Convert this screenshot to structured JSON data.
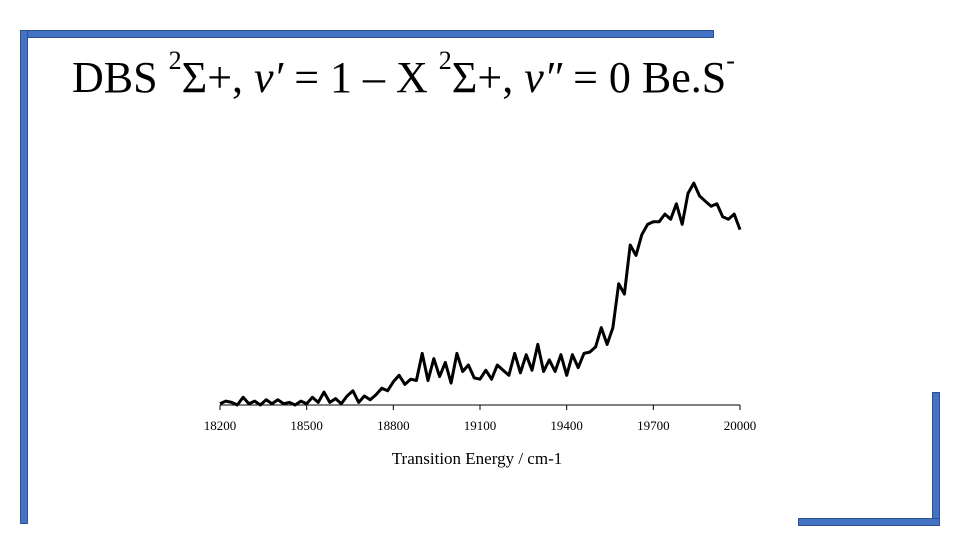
{
  "slide": {
    "title": {
      "prefix": "DBS ",
      "state1_sup": "2",
      "state1_rest": "Σ+, ",
      "state1_v": "v′",
      "state1_eq": " = 1 –  X ",
      "state2_sup": "2",
      "state2_rest": "Σ+, ",
      "state2_v": "v″",
      "state2_eq": " = 0 Be.S",
      "charge_sup": "-"
    },
    "frame_color": "#4472c4"
  },
  "chart_data": {
    "type": "line",
    "title": "",
    "xlabel": "Transition Energy / cm-1",
    "ylabel": "",
    "xlim": [
      18200,
      20000
    ],
    "ylim": [
      0,
      1
    ],
    "xticks": [
      "18200",
      "18500",
      "18800",
      "19100",
      "19400",
      "19700",
      "20000"
    ],
    "grid": false,
    "line_color": "#000000",
    "series": [
      {
        "x": [
          18200,
          18220,
          18240,
          18260,
          18280,
          18300,
          18320,
          18340,
          18360,
          18380,
          18400,
          18420,
          18440,
          18460,
          18480,
          18500,
          18520,
          18540,
          18560,
          18580,
          18600,
          18620,
          18640,
          18660,
          18680,
          18700,
          18720,
          18740,
          18760,
          18780,
          18800,
          18820,
          18840,
          18860,
          18880,
          18900,
          18920,
          18940,
          18960,
          18980,
          19000,
          19020,
          19040,
          19060,
          19080,
          19100,
          19120,
          19140,
          19160,
          19180,
          19200,
          19220,
          19240,
          19260,
          19280,
          19300,
          19320,
          19340,
          19360,
          19380,
          19400,
          19420,
          19440,
          19460,
          19480,
          19500,
          19520,
          19540,
          19560,
          19580,
          19600,
          19620,
          19640,
          19660,
          19680,
          19700,
          19720,
          19740,
          19760,
          19780,
          19800,
          19820,
          19840,
          19860,
          19880,
          19900,
          19920,
          19940,
          19960,
          19980,
          20000
        ],
        "y": [
          0.005,
          0.015,
          0.01,
          0.0,
          0.03,
          0.005,
          0.015,
          0.0,
          0.02,
          0.005,
          0.02,
          0.005,
          0.01,
          0.0,
          0.015,
          0.005,
          0.03,
          0.01,
          0.05,
          0.01,
          0.025,
          0.005,
          0.035,
          0.055,
          0.01,
          0.035,
          0.02,
          0.04,
          0.065,
          0.055,
          0.09,
          0.115,
          0.08,
          0.1,
          0.095,
          0.2,
          0.095,
          0.18,
          0.11,
          0.165,
          0.085,
          0.2,
          0.13,
          0.155,
          0.105,
          0.1,
          0.135,
          0.1,
          0.155,
          0.135,
          0.115,
          0.2,
          0.125,
          0.195,
          0.135,
          0.235,
          0.13,
          0.175,
          0.13,
          0.195,
          0.115,
          0.195,
          0.145,
          0.2,
          0.205,
          0.225,
          0.3,
          0.235,
          0.3,
          0.47,
          0.43,
          0.62,
          0.58,
          0.66,
          0.7,
          0.71,
          0.71,
          0.74,
          0.72,
          0.78,
          0.7,
          0.82,
          0.86,
          0.81,
          0.79,
          0.77,
          0.78,
          0.73,
          0.72,
          0.74,
          0.68
        ]
      }
    ]
  }
}
